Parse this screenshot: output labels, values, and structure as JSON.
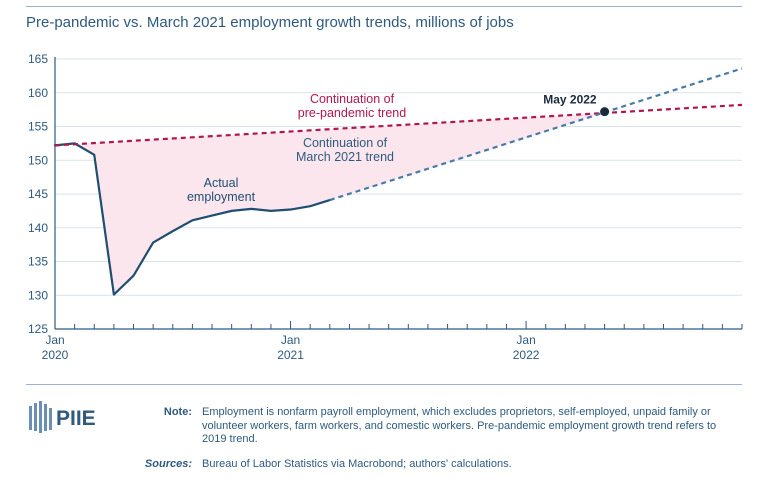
{
  "chart_data": {
    "type": "line",
    "title": "Pre-pandemic vs. March 2021 employment growth trends, millions of jobs",
    "xlabel": "",
    "ylabel": "",
    "ylim": [
      125,
      165
    ],
    "yticks": [
      125,
      130,
      135,
      140,
      145,
      150,
      155,
      160,
      165
    ],
    "xlim": [
      "2020-01",
      "2022-12"
    ],
    "xticks": [
      {
        "date": "2020-01",
        "month": "Jan",
        "year": "2020"
      },
      {
        "date": "2021-01",
        "month": "Jan",
        "year": "2021"
      },
      {
        "date": "2022-01",
        "month": "Jan",
        "year": "2022"
      }
    ],
    "grid": "horizontal",
    "series": [
      {
        "key": "actual",
        "label": "Actual employment",
        "style": "solid",
        "color": "#1f4e70",
        "x": [
          "2020-01",
          "2020-02",
          "2020-03",
          "2020-04",
          "2020-05",
          "2020-06",
          "2020-07",
          "2020-08",
          "2020-09",
          "2020-10",
          "2020-11",
          "2020-12",
          "2021-01",
          "2021-02",
          "2021-03"
        ],
        "y": [
          152.2,
          152.5,
          150.8,
          130.1,
          132.9,
          137.8,
          139.5,
          141.1,
          141.8,
          142.5,
          142.8,
          142.5,
          142.7,
          143.2,
          144.1
        ]
      },
      {
        "key": "pre_pandemic_trend",
        "label": "Continuation of pre-pandemic trend",
        "style": "dashed",
        "color": "#b0174f",
        "x": [
          "2020-01",
          "2022-12"
        ],
        "y": [
          152.2,
          158.2
        ]
      },
      {
        "key": "march_2021_trend",
        "label": "Continuation of March 2021 trend",
        "style": "dashed",
        "color": "#4a7aa6",
        "x": [
          "2021-03",
          "2022-12"
        ],
        "y": [
          144.1,
          163.6
        ]
      }
    ],
    "annotations": [
      {
        "key": "may2022",
        "label": "May 2022",
        "x": "2022-05",
        "y": 157.2
      }
    ],
    "shaded_gap": {
      "between": [
        "pre_pandemic_trend",
        "actual",
        "march_2021_trend"
      ],
      "until": "2022-05",
      "color": "#fbe6ee"
    }
  },
  "labels": {
    "actual": [
      "Actual",
      "employment"
    ],
    "pre_pandemic": [
      "Continuation of",
      "pre-pandemic trend"
    ],
    "march_2021": [
      "Continuation of",
      "March 2021 trend"
    ]
  },
  "footer": {
    "logo_text": "PIIE",
    "note_label": "Note:",
    "note_text": "Employment is nonfarm payroll employment, which excludes proprietors, self-employed, unpaid family or volunteer workers, farm workers, and comestic workers. Pre-pandemic employment growth trend refers to 2019 trend.",
    "sources_label": "Sources:",
    "sources_text": "Bureau of Labor Statistics via Macrobond; authors' calculations."
  },
  "colors": {
    "title": "#2e5a7e",
    "axis": "#2e5a7e",
    "grid": "#d9e3ec",
    "rule": "#9fb4c8",
    "pre_trend_label": "#b0174f",
    "march_trend_label": "#2e5a7e",
    "marker": "#1b2a3a"
  }
}
